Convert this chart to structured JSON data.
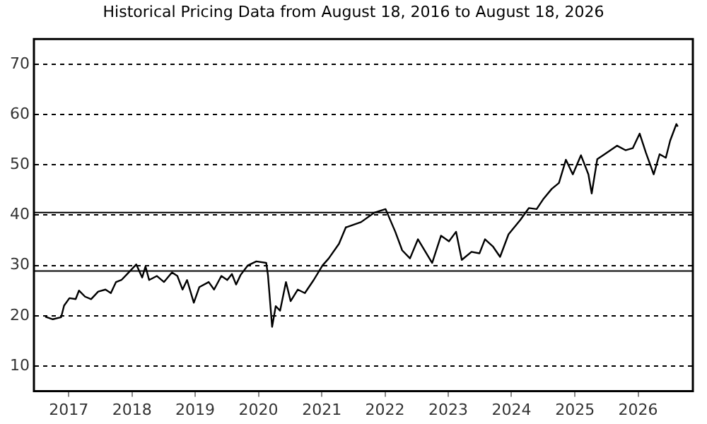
{
  "chart_data": {
    "type": "line",
    "title": "Historical Pricing Data from August 18, 2016 to August 18, 2026",
    "x": [
      "2016-08-18",
      "2016-10-01",
      "2016-11-18",
      "2016-12-05",
      "2017-01-05",
      "2017-02-10",
      "2017-03-01",
      "2017-04-05",
      "2017-05-10",
      "2017-06-20",
      "2017-08-01",
      "2017-09-01",
      "2017-10-01",
      "2017-11-01",
      "2017-12-05",
      "2018-01-26",
      "2018-03-01",
      "2018-03-20",
      "2018-04-10",
      "2018-05-25",
      "2018-07-05",
      "2018-08-20",
      "2018-09-20",
      "2018-10-20",
      "2018-11-15",
      "2018-12-24",
      "2019-01-25",
      "2019-03-20",
      "2019-04-20",
      "2019-06-01",
      "2019-07-05",
      "2019-08-01",
      "2019-08-25",
      "2019-09-20",
      "2019-11-01",
      "2019-12-20",
      "2020-02-15",
      "2020-02-25",
      "2020-03-20",
      "2020-04-10",
      "2020-05-05",
      "2020-06-08",
      "2020-07-05",
      "2020-08-15",
      "2020-09-25",
      "2020-11-15",
      "2021-01-05",
      "2021-02-10",
      "2021-04-10",
      "2021-05-20",
      "2021-05-25",
      "2021-08-15",
      "2021-11-01",
      "2022-01-04",
      "2022-03-01",
      "2022-04-10",
      "2022-05-25",
      "2022-07-10",
      "2022-09-30",
      "2022-11-20",
      "2023-01-05",
      "2023-02-15",
      "2023-03-20",
      "2023-05-15",
      "2023-06-30",
      "2023-08-01",
      "2023-09-15",
      "2023-10-27",
      "2023-12-15",
      "2024-02-20",
      "2024-04-10",
      "2024-05-25",
      "2024-07-05",
      "2024-08-20",
      "2024-10-01",
      "2024-11-10",
      "2024-12-20",
      "2025-02-05",
      "2025-03-20",
      "2025-04-08",
      "2025-05-10",
      "2025-07-05",
      "2025-09-01",
      "2025-10-20",
      "2025-12-01",
      "2026-01-10",
      "2026-02-15",
      "2026-04-01",
      "2026-05-05",
      "2026-06-10",
      "2026-07-05",
      "2026-08-10",
      "2026-08-18"
    ],
    "values": [
      19.8,
      19.3,
      19.7,
      22,
      23.5,
      23.3,
      25,
      23.8,
      23.3,
      24.8,
      25.2,
      24.5,
      26.7,
      27.1,
      28.3,
      30.2,
      27.6,
      29.8,
      27.1,
      27.9,
      26.7,
      28.6,
      27.9,
      25.2,
      27.1,
      22.6,
      25.7,
      26.7,
      25.2,
      27.9,
      27.1,
      28.3,
      26.2,
      28.1,
      30,
      30.8,
      30.5,
      28.1,
      17.8,
      21.9,
      21,
      26.7,
      22.9,
      25.2,
      24.5,
      27.1,
      30,
      31.4,
      34.3,
      37.6,
      37.6,
      38.6,
      40.5,
      41.2,
      36.7,
      33,
      31.4,
      35.2,
      30.5,
      35.9,
      34.8,
      36.7,
      31.1,
      32.7,
      32.4,
      35.2,
      33.8,
      31.7,
      36.2,
      39,
      41.4,
      41.2,
      43.3,
      45.2,
      46.4,
      51,
      48.1,
      51.9,
      48.1,
      44.3,
      51.1,
      52.4,
      53.8,
      52.9,
      53.3,
      56.2,
      52.4,
      48.1,
      52.1,
      51.4,
      54.8,
      58.1,
      57.6
    ],
    "color": "#000000",
    "xlim": [
      "2016-06-14",
      "2026-11-13"
    ],
    "xticks": [
      "2017",
      "2018",
      "2019",
      "2020",
      "2021",
      "2022",
      "2023",
      "2024",
      "2025",
      "2026"
    ],
    "ylim": [
      5,
      75
    ],
    "yticks": [
      10,
      20,
      30,
      40,
      50,
      60,
      70
    ],
    "grid": "y",
    "legend": false,
    "marker": "none",
    "line_style": "solid",
    "ref_lines": [
      {
        "axis": "y",
        "value": 40.5,
        "label": null,
        "color": "#000000"
      },
      {
        "axis": "y",
        "value": 28.9,
        "label": null,
        "color": "#000000"
      }
    ]
  }
}
